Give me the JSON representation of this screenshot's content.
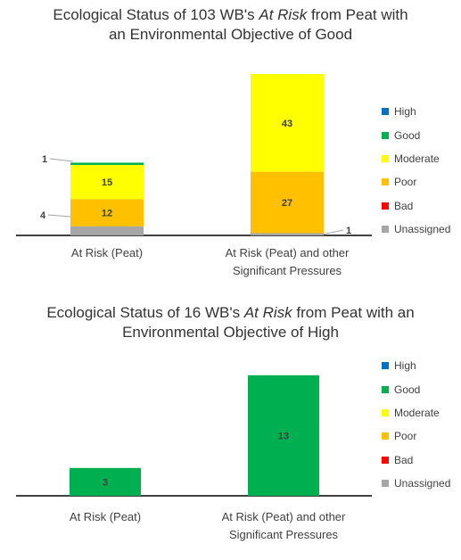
{
  "colors": {
    "High": "#0070c0",
    "Good": "#00b050",
    "Moderate": "#ffff00",
    "Poor": "#ffc000",
    "Bad": "#ff0000",
    "Unassigned": "#a6a6a6"
  },
  "legend": [
    "High",
    "Good",
    "Moderate",
    "Poor",
    "Bad",
    "Unassigned"
  ],
  "chart_data": [
    {
      "type": "bar",
      "stacked": true,
      "title": {
        "line1_pre": "Ecological Status of 103 WB's ",
        "line1_italic": "At Risk",
        "line1_post": " from Peat with",
        "line2": "an Environmental Objective of Good"
      },
      "categories": [
        "At Risk (Peat)",
        "At Risk (Peat) and other Significant Pressures"
      ],
      "category_lines": [
        [
          "At Risk (Peat)"
        ],
        [
          "At Risk (Peat) and other",
          "Significant Pressures"
        ]
      ],
      "series": [
        {
          "name": "Unassigned",
          "values": [
            4,
            1
          ]
        },
        {
          "name": "Bad",
          "values": [
            0,
            0
          ]
        },
        {
          "name": "Poor",
          "values": [
            12,
            27
          ]
        },
        {
          "name": "Moderate",
          "values": [
            15,
            43
          ]
        },
        {
          "name": "Good",
          "values": [
            1,
            0
          ]
        },
        {
          "name": "High",
          "values": [
            0,
            0
          ]
        }
      ],
      "ylim": [
        0,
        72
      ],
      "legend_position": "right",
      "grid": false
    },
    {
      "type": "bar",
      "stacked": true,
      "title": {
        "line1_pre": "Ecological Status of 16 WB's ",
        "line1_italic": "At Risk",
        "line1_post": " from Peat with an",
        "line2": "Environmental Objective of High"
      },
      "categories": [
        "At Risk (Peat)",
        "At Risk (Peat) and other Significant Pressures"
      ],
      "category_lines": [
        [
          "At Risk (Peat)"
        ],
        [
          "At Risk (Peat) and other",
          "Significant Pressures"
        ]
      ],
      "series": [
        {
          "name": "Unassigned",
          "values": [
            0,
            0
          ]
        },
        {
          "name": "Bad",
          "values": [
            0,
            0
          ]
        },
        {
          "name": "Poor",
          "values": [
            0,
            0
          ]
        },
        {
          "name": "Moderate",
          "values": [
            0,
            0
          ]
        },
        {
          "name": "Good",
          "values": [
            3,
            13
          ]
        },
        {
          "name": "High",
          "values": [
            0,
            0
          ]
        }
      ],
      "ylim": [
        0,
        13
      ],
      "legend_position": "right",
      "grid": false
    }
  ]
}
